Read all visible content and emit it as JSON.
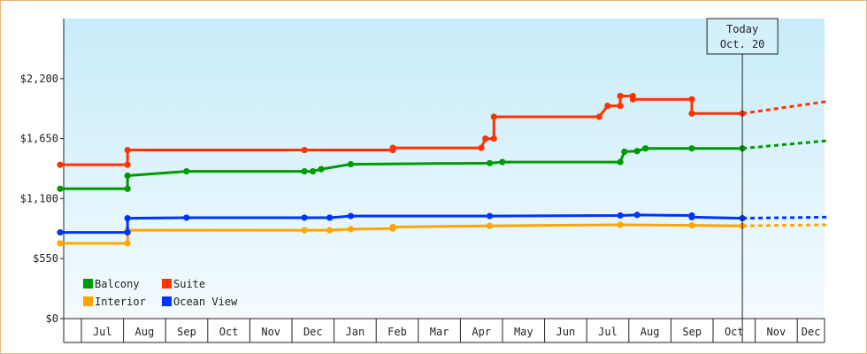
{
  "chart_data": {
    "type": "line",
    "step": true,
    "x_unit": "month-index from Jun (0 = start of Jun)",
    "ylim": [
      0,
      2750
    ],
    "yticks": [
      {
        "value": 0,
        "label": "$0"
      },
      {
        "value": 550,
        "label": "$550"
      },
      {
        "value": 1100,
        "label": "$1,100"
      },
      {
        "value": 1650,
        "label": "$1,650"
      },
      {
        "value": 2200,
        "label": "$2,200"
      }
    ],
    "months": [
      "Jul",
      "Aug",
      "Sep",
      "Oct",
      "Nov",
      "Dec",
      "Jan",
      "Feb",
      "Mar",
      "Apr",
      "May",
      "Jun",
      "Jul",
      "Aug",
      "Sep",
      "Oct",
      "Nov",
      "Dec"
    ],
    "grid": false,
    "legend_position": "bottom-left",
    "today": {
      "line1": "Today",
      "line2": "Oct. 20"
    },
    "series": [
      {
        "name": "Balcony",
        "color": "#009900",
        "points": [
          [
            0.0,
            1190
          ],
          [
            1.6,
            1190
          ],
          [
            1.6,
            1310
          ],
          [
            3.0,
            1350
          ],
          [
            5.8,
            1350
          ],
          [
            6.0,
            1350
          ],
          [
            6.2,
            1370
          ],
          [
            6.9,
            1415
          ],
          [
            10.2,
            1425
          ],
          [
            10.5,
            1435
          ],
          [
            13.3,
            1435
          ],
          [
            13.4,
            1530
          ],
          [
            13.7,
            1535
          ],
          [
            13.9,
            1560
          ],
          [
            15.0,
            1560
          ],
          [
            16.2,
            1560
          ]
        ],
        "forecast_end": [
          18.2,
          1630
        ]
      },
      {
        "name": "Suite",
        "color": "#ff3300",
        "points": [
          [
            0.0,
            1410
          ],
          [
            1.6,
            1410
          ],
          [
            1.6,
            1545
          ],
          [
            5.8,
            1545
          ],
          [
            7.9,
            1545
          ],
          [
            7.9,
            1565
          ],
          [
            10.0,
            1565
          ],
          [
            10.1,
            1650
          ],
          [
            10.3,
            1650
          ],
          [
            10.3,
            1850
          ],
          [
            12.8,
            1850
          ],
          [
            13.0,
            1950
          ],
          [
            13.3,
            1950
          ],
          [
            13.3,
            2040
          ],
          [
            13.6,
            2040
          ],
          [
            13.6,
            2010
          ],
          [
            15.0,
            2010
          ],
          [
            15.0,
            1880
          ],
          [
            16.2,
            1880
          ]
        ],
        "forecast_end": [
          18.2,
          1990
        ]
      },
      {
        "name": "Interior",
        "color": "#ffa500",
        "points": [
          [
            0.0,
            690
          ],
          [
            1.6,
            690
          ],
          [
            1.6,
            810
          ],
          [
            5.8,
            810
          ],
          [
            6.4,
            810
          ],
          [
            6.9,
            820
          ],
          [
            7.9,
            825
          ],
          [
            7.9,
            840
          ],
          [
            10.2,
            850
          ],
          [
            13.3,
            860
          ],
          [
            15.0,
            855
          ],
          [
            16.2,
            850
          ]
        ],
        "forecast_end": [
          18.2,
          860
        ]
      },
      {
        "name": "Ocean View",
        "color": "#0033ff",
        "points": [
          [
            0.0,
            790
          ],
          [
            1.6,
            790
          ],
          [
            1.6,
            920
          ],
          [
            3.0,
            925
          ],
          [
            5.8,
            925
          ],
          [
            6.4,
            925
          ],
          [
            6.9,
            940
          ],
          [
            10.2,
            940
          ],
          [
            13.3,
            945
          ],
          [
            13.7,
            950
          ],
          [
            15.0,
            945
          ],
          [
            15.0,
            930
          ],
          [
            16.2,
            920
          ]
        ],
        "forecast_end": [
          18.2,
          930
        ]
      }
    ]
  }
}
